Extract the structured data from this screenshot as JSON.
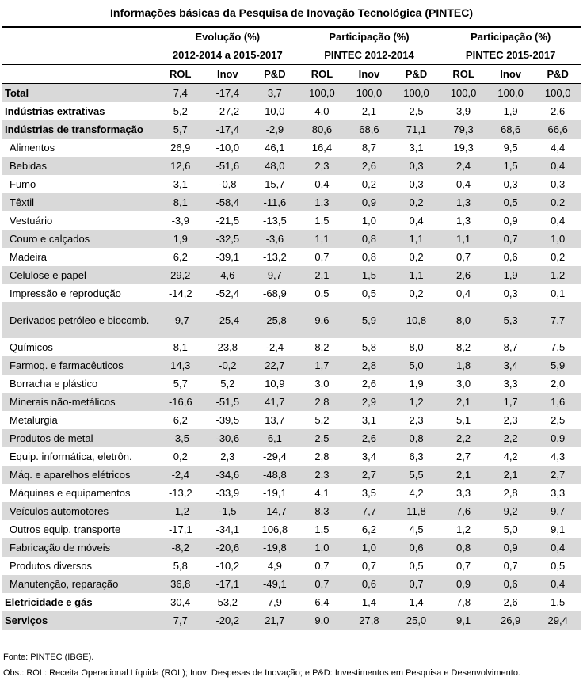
{
  "title": "Informações básicas da Pesquisa de Inovação Tecnológica (PINTEC)",
  "header": {
    "groups": [
      {
        "line1": "Evolução (%)",
        "line2": "2012-2014 a 2015-2017"
      },
      {
        "line1": "Participação (%)",
        "line2": "PINTEC 2012-2014"
      },
      {
        "line1": "Participação (%)",
        "line2": "PINTEC 2015-2017"
      }
    ],
    "sub": [
      "ROL",
      "Inov",
      "P&D",
      "ROL",
      "Inov",
      "P&D",
      "ROL",
      "Inov",
      "P&D"
    ]
  },
  "rows": [
    {
      "label": "Total",
      "style": "bold",
      "shade": true,
      "values": [
        "7,4",
        "-17,4",
        "3,7",
        "100,0",
        "100,0",
        "100,0",
        "100,0",
        "100,0",
        "100,0"
      ]
    },
    {
      "label": "Indústrias extrativas",
      "style": "bold",
      "shade": false,
      "values": [
        "5,2",
        "-27,2",
        "10,0",
        "4,0",
        "2,1",
        "2,5",
        "3,9",
        "1,9",
        "2,6"
      ]
    },
    {
      "label": "Indústrias de transformação",
      "style": "bold",
      "shade": true,
      "values": [
        "5,7",
        "-17,4",
        "-2,9",
        "80,6",
        "68,6",
        "71,1",
        "79,3",
        "68,6",
        "66,6"
      ]
    },
    {
      "label": "Alimentos",
      "style": "sub",
      "shade": false,
      "values": [
        "26,9",
        "-10,0",
        "46,1",
        "16,4",
        "8,7",
        "3,1",
        "19,3",
        "9,5",
        "4,4"
      ]
    },
    {
      "label": "Bebidas",
      "style": "sub",
      "shade": true,
      "values": [
        "12,6",
        "-51,6",
        "48,0",
        "2,3",
        "2,6",
        "0,3",
        "2,4",
        "1,5",
        "0,4"
      ]
    },
    {
      "label": "Fumo",
      "style": "sub",
      "shade": false,
      "values": [
        "3,1",
        "-0,8",
        "15,7",
        "0,4",
        "0,2",
        "0,3",
        "0,4",
        "0,3",
        "0,3"
      ]
    },
    {
      "label": "Têxtil",
      "style": "sub",
      "shade": true,
      "values": [
        "8,1",
        "-58,4",
        "-11,6",
        "1,3",
        "0,9",
        "0,2",
        "1,3",
        "0,5",
        "0,2"
      ]
    },
    {
      "label": "Vestuário",
      "style": "sub",
      "shade": false,
      "values": [
        "-3,9",
        "-21,5",
        "-13,5",
        "1,5",
        "1,0",
        "0,4",
        "1,3",
        "0,9",
        "0,4"
      ]
    },
    {
      "label": "Couro e calçados",
      "style": "sub",
      "shade": true,
      "values": [
        "1,9",
        "-32,5",
        "-3,6",
        "1,1",
        "0,8",
        "1,1",
        "1,1",
        "0,7",
        "1,0"
      ]
    },
    {
      "label": "Madeira",
      "style": "sub",
      "shade": false,
      "values": [
        "6,2",
        "-39,1",
        "-13,2",
        "0,7",
        "0,8",
        "0,2",
        "0,7",
        "0,6",
        "0,2"
      ]
    },
    {
      "label": "Celulose e papel",
      "style": "sub",
      "shade": true,
      "values": [
        "29,2",
        "4,6",
        "9,7",
        "2,1",
        "1,5",
        "1,1",
        "2,6",
        "1,9",
        "1,2"
      ]
    },
    {
      "label": "Impressão e reprodução",
      "style": "sub",
      "shade": false,
      "values": [
        "-14,2",
        "-52,4",
        "-68,9",
        "0,5",
        "0,5",
        "0,2",
        "0,4",
        "0,3",
        "0,1"
      ]
    },
    {
      "label": "Derivados petróleo e biocomb.",
      "style": "sub",
      "shade": true,
      "tall": true,
      "values": [
        "-9,7",
        "-25,4",
        "-25,8",
        "9,6",
        "5,9",
        "10,8",
        "8,0",
        "5,3",
        "7,7"
      ]
    },
    {
      "label": "Químicos",
      "style": "sub",
      "shade": false,
      "values": [
        "8,1",
        "23,8",
        "-2,4",
        "8,2",
        "5,8",
        "8,0",
        "8,2",
        "8,7",
        "7,5"
      ]
    },
    {
      "label": "Farmoq. e farmacêuticos",
      "style": "sub",
      "shade": true,
      "values": [
        "14,3",
        "-0,2",
        "22,7",
        "1,7",
        "2,8",
        "5,0",
        "1,8",
        "3,4",
        "5,9"
      ]
    },
    {
      "label": "Borracha e plástico",
      "style": "sub",
      "shade": false,
      "values": [
        "5,7",
        "5,2",
        "10,9",
        "3,0",
        "2,6",
        "1,9",
        "3,0",
        "3,3",
        "2,0"
      ]
    },
    {
      "label": "Minerais não-metálicos",
      "style": "sub",
      "shade": true,
      "values": [
        "-16,6",
        "-51,5",
        "41,7",
        "2,8",
        "2,9",
        "1,2",
        "2,1",
        "1,7",
        "1,6"
      ]
    },
    {
      "label": "Metalurgia",
      "style": "sub",
      "shade": false,
      "values": [
        "6,2",
        "-39,5",
        "13,7",
        "5,2",
        "3,1",
        "2,3",
        "5,1",
        "2,3",
        "2,5"
      ]
    },
    {
      "label": "Produtos de metal",
      "style": "sub",
      "shade": true,
      "values": [
        "-3,5",
        "-30,6",
        "6,1",
        "2,5",
        "2,6",
        "0,8",
        "2,2",
        "2,2",
        "0,9"
      ]
    },
    {
      "label": "Equip. informática, eletrôn.",
      "style": "sub",
      "shade": false,
      "values": [
        "0,2",
        "2,3",
        "-29,4",
        "2,8",
        "3,4",
        "6,3",
        "2,7",
        "4,2",
        "4,3"
      ]
    },
    {
      "label": "Máq. e aparelhos elétricos",
      "style": "sub",
      "shade": true,
      "values": [
        "-2,4",
        "-34,6",
        "-48,8",
        "2,3",
        "2,7",
        "5,5",
        "2,1",
        "2,1",
        "2,7"
      ]
    },
    {
      "label": "Máquinas e equipamentos",
      "style": "sub",
      "shade": false,
      "values": [
        "-13,2",
        "-33,9",
        "-19,1",
        "4,1",
        "3,5",
        "4,2",
        "3,3",
        "2,8",
        "3,3"
      ]
    },
    {
      "label": "Veículos automotores",
      "style": "sub",
      "shade": true,
      "values": [
        "-1,2",
        "-1,5",
        "-14,7",
        "8,3",
        "7,7",
        "11,8",
        "7,6",
        "9,2",
        "9,7"
      ]
    },
    {
      "label": "Outros equip. transporte",
      "style": "sub",
      "shade": false,
      "values": [
        "-17,1",
        "-34,1",
        "106,8",
        "1,5",
        "6,2",
        "4,5",
        "1,2",
        "5,0",
        "9,1"
      ]
    },
    {
      "label": "Fabricação de móveis",
      "style": "sub",
      "shade": true,
      "values": [
        "-8,2",
        "-20,6",
        "-19,8",
        "1,0",
        "1,0",
        "0,6",
        "0,8",
        "0,9",
        "0,4"
      ]
    },
    {
      "label": "Produtos diversos",
      "style": "sub",
      "shade": false,
      "values": [
        "5,8",
        "-10,2",
        "4,9",
        "0,7",
        "0,7",
        "0,5",
        "0,7",
        "0,7",
        "0,5"
      ]
    },
    {
      "label": "Manutenção, reparação",
      "style": "sub",
      "shade": true,
      "values": [
        "36,8",
        "-17,1",
        "-49,1",
        "0,7",
        "0,6",
        "0,7",
        "0,9",
        "0,6",
        "0,4"
      ]
    },
    {
      "label": "Eletricidade e gás",
      "style": "bold",
      "shade": false,
      "values": [
        "30,4",
        "53,2",
        "7,9",
        "6,4",
        "1,4",
        "1,4",
        "7,8",
        "2,6",
        "1,5"
      ]
    },
    {
      "label": "Serviços",
      "style": "bold",
      "shade": true,
      "values": [
        "7,7",
        "-20,2",
        "21,7",
        "9,0",
        "27,8",
        "25,0",
        "9,1",
        "26,9",
        "29,4"
      ]
    }
  ],
  "notes": {
    "source": "Fonte: PINTEC (IBGE).",
    "obs": "Obs.: ROL: Receita Operacional Líquida (ROL); Inov: Despesas de Inovação; e P&D: Investimentos em Pesquisa e Desenvolvimento."
  }
}
